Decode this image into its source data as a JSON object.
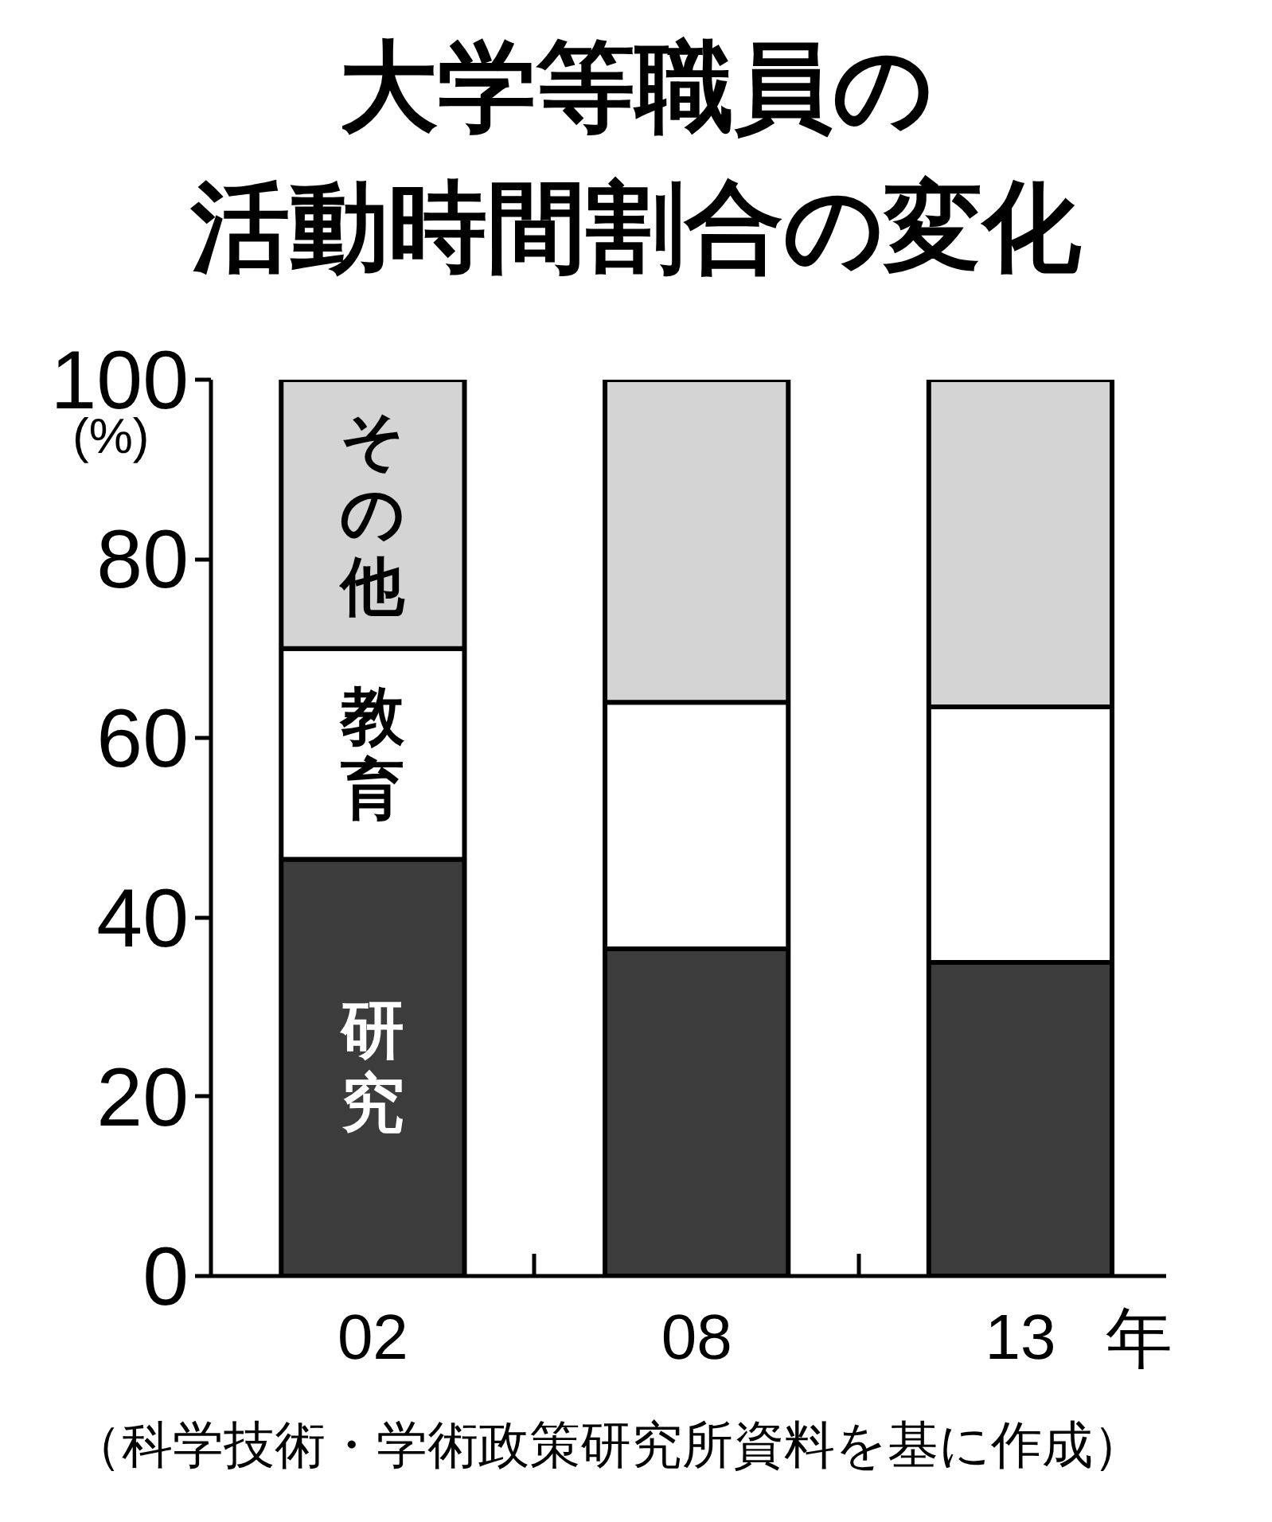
{
  "chart_data": {
    "type": "bar",
    "title": "大学等職員の活動時間割合の変化",
    "xlabel": "年",
    "ylabel": "(%)",
    "categories": [
      "02",
      "08",
      "13"
    ],
    "stacked": true,
    "series": [
      {
        "name": "研究",
        "color": "#3c3c3c",
        "values": [
          46.5,
          36.5,
          35
        ]
      },
      {
        "name": "教育",
        "color": "#ffffff",
        "values": [
          23.5,
          27.5,
          28.5
        ]
      },
      {
        "name": "その他",
        "color": "#d4d4d4",
        "values": [
          30,
          36,
          36.5
        ]
      }
    ],
    "ylim": [
      0,
      100
    ],
    "yticks": [
      0,
      20,
      40,
      60,
      80,
      100
    ],
    "grid": false,
    "annotations": [
      "（科学技術・学術政策研究所資料を基に作成）"
    ]
  }
}
